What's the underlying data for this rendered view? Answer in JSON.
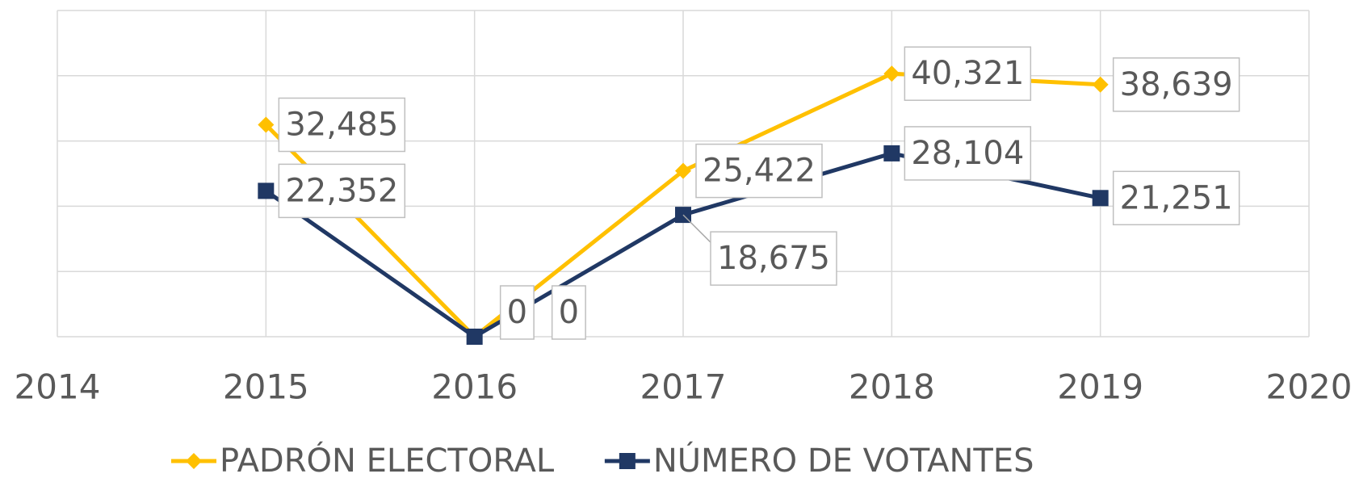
{
  "chart_data": {
    "type": "line",
    "x": [
      2015,
      2016,
      2017,
      2018,
      2019
    ],
    "series": [
      {
        "name": "PADRÓN ELECTORAL",
        "color": "#FFC000",
        "marker": "diamond",
        "values": [
          32485,
          0,
          25422,
          40321,
          38639
        ],
        "value_labels": [
          "32,485",
          "0",
          "25,422",
          "40,321",
          "38,639"
        ]
      },
      {
        "name": "NÚMERO DE VOTANTES",
        "color": "#203864",
        "marker": "square",
        "values": [
          22352,
          0,
          18675,
          28104,
          21251
        ],
        "value_labels": [
          "22,352",
          "0",
          "18,675",
          "28,104",
          "21,251"
        ]
      }
    ],
    "xlim": [
      2014,
      2020
    ],
    "xticks": [
      2014,
      2015,
      2016,
      2017,
      2018,
      2019,
      2020
    ],
    "ylim": [
      0,
      50000
    ],
    "yticks": [
      0,
      10000,
      20000,
      30000,
      40000,
      50000
    ],
    "grid": true,
    "legend": "bottom"
  }
}
